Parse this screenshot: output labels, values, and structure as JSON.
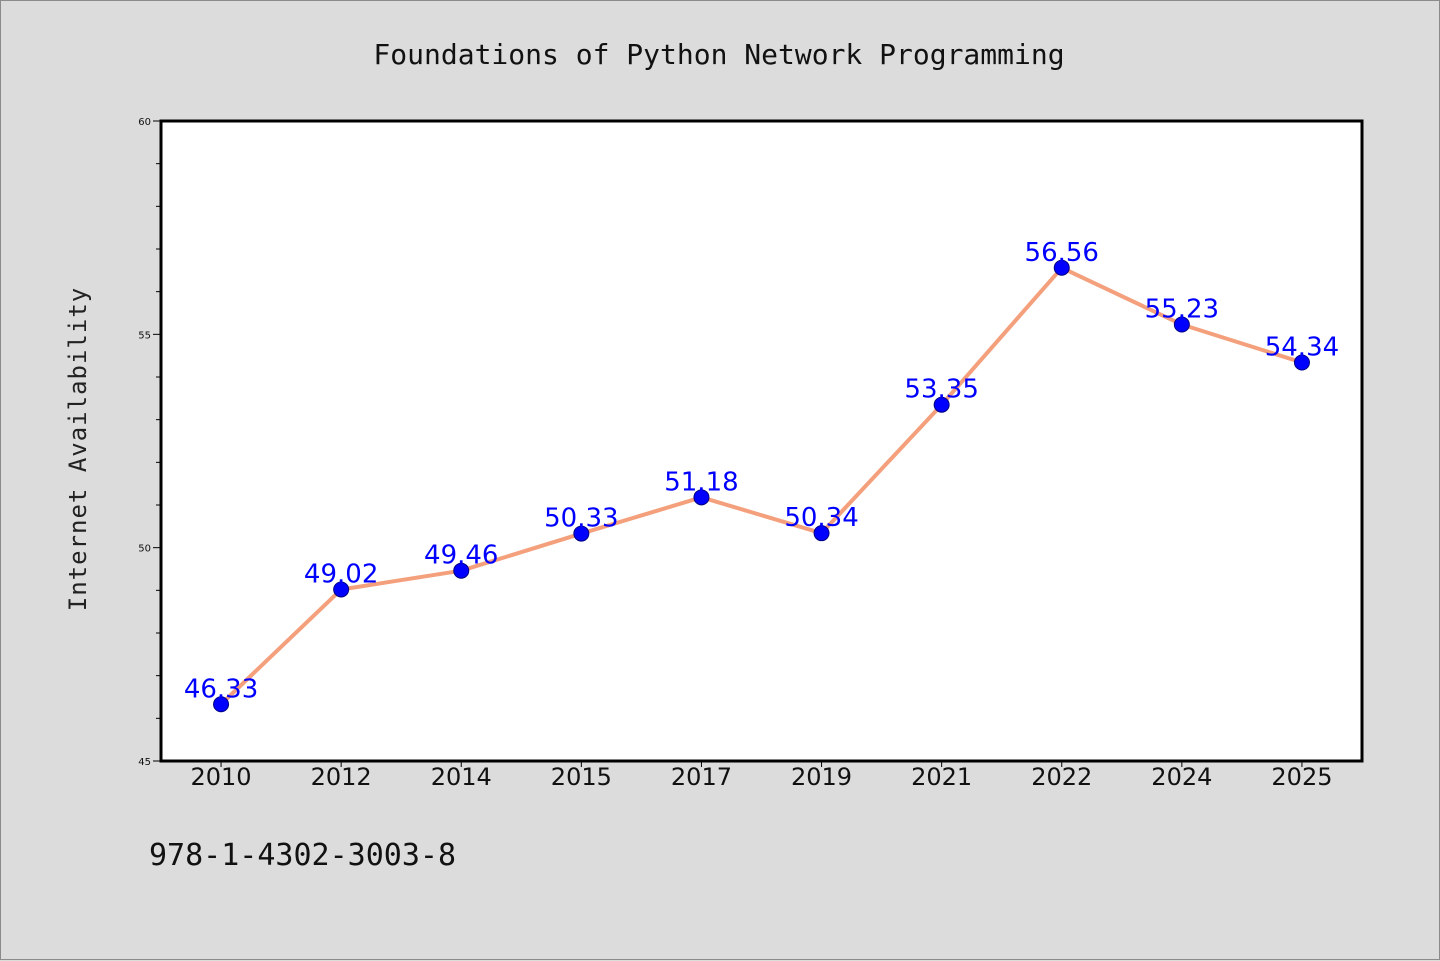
{
  "chart_data": {
    "type": "line",
    "title": "Foundations of Python Network Programming",
    "xlabel": "",
    "ylabel": "Internet Availability",
    "categories": [
      "2010",
      "2012",
      "2014",
      "2015",
      "2017",
      "2019",
      "2021",
      "2022",
      "2024",
      "2025"
    ],
    "series": [
      {
        "values": [
          46.33,
          49.02,
          49.46,
          50.33,
          51.18,
          50.34,
          53.35,
          56.56,
          55.23,
          54.34
        ],
        "labels": [
          "46.33",
          "49.02",
          "49.46",
          "50.33",
          "51.18",
          "50.34",
          "53.35",
          "56.56",
          "55.23",
          "54.34"
        ],
        "line_color": "#f4a07c",
        "marker_color": "#0000ff"
      }
    ],
    "ylim": [
      45,
      60
    ],
    "yticks": [
      "45",
      "50",
      "55",
      "60"
    ],
    "grid": false,
    "legend": "none",
    "footer_text": "978-1-4302-3003-8"
  },
  "colors": {
    "background": "#dcdcdc",
    "plot_area": "#ffffff",
    "line": "#f4a07c",
    "marker": "#0000ff",
    "data_label": "#0000ff"
  }
}
